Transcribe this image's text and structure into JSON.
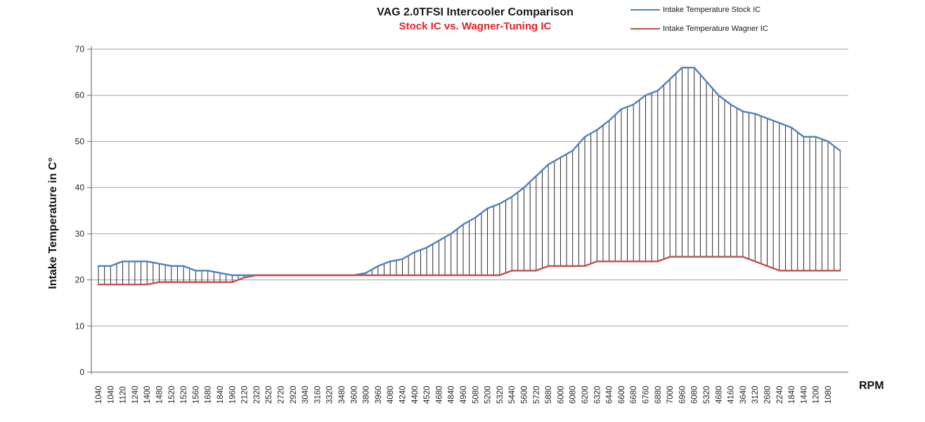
{
  "title": "VAG 2.0TFSI Intercooler Comparison",
  "subtitle": "Stock IC vs. Wagner-Tuning IC",
  "colors": {
    "title_text": "#1a1a1a",
    "subtitle_text": "#e32227",
    "stock_line": "#4F81BD",
    "wagner_line": "#C0504D",
    "gridline": "#a3a3a3",
    "axis_line": "#808080",
    "high_low_line": "#141414",
    "tick_text": "#262626"
  },
  "legend": [
    {
      "label": "Intake Temperature Stock IC",
      "color": "#4F81BD"
    },
    {
      "label": "Intake Temperature Wagner IC",
      "color": "#C0504D"
    }
  ],
  "y_axis": {
    "title": "Intake Temperature in C°",
    "ticks": [
      "0",
      "10",
      "20",
      "30",
      "40",
      "50",
      "60",
      "70"
    ]
  },
  "x_axis": {
    "title": "RPM"
  },
  "chart_data": {
    "type": "line",
    "title": "VAG 2.0TFSI Intercooler Comparison",
    "subtitle": "Stock IC vs. Wagner-Tuning IC",
    "xlabel": "RPM",
    "ylabel": "Intake Temperature in C°",
    "ylim": [
      0,
      70
    ],
    "y_tick_step": 10,
    "grid": "horizontal",
    "legend_position": "top-right",
    "high_low_lines": true,
    "categories": [
      "1040",
      "1040",
      "1120",
      "1240",
      "1400",
      "1480",
      "1520",
      "1520",
      "1560",
      "1680",
      "1840",
      "1960",
      "2120",
      "2320",
      "2520",
      "2720",
      "2920",
      "3040",
      "3160",
      "3320",
      "3480",
      "3600",
      "3800",
      "3960",
      "4080",
      "4240",
      "4400",
      "4520",
      "4680",
      "4840",
      "4960",
      "5080",
      "5200",
      "5320",
      "5440",
      "5600",
      "5720",
      "5880",
      "6000",
      "6080",
      "6200",
      "6320",
      "6440",
      "6600",
      "6680",
      "6760",
      "6880",
      "7000",
      "6960",
      "6080",
      "5320",
      "4680",
      "4160",
      "3640",
      "3120",
      "2680",
      "2240",
      "1840",
      "1440",
      "1200",
      "1080"
    ],
    "series": [
      {
        "name": "Intake Temperature Stock IC",
        "color": "#4F81BD",
        "values": [
          23,
          23,
          24,
          24,
          24,
          23.5,
          23,
          23,
          22,
          22,
          21.5,
          21,
          21,
          21,
          21,
          21,
          21,
          21,
          21,
          21,
          21,
          21,
          21.5,
          23,
          24,
          24.5,
          26,
          27,
          28.5,
          30,
          32,
          33.5,
          35.5,
          36.5,
          38,
          40,
          42.5,
          45,
          46.5,
          48,
          51,
          52.5,
          54.5,
          57,
          58,
          60,
          61,
          63.5,
          66,
          66,
          63,
          60,
          58,
          56.5,
          56,
          55,
          54,
          53,
          51,
          51,
          50
        ],
        "final_unlabeled_value": 48
      },
      {
        "name": "Intake Temperature Wagner IC",
        "color": "#C0504D",
        "values": [
          19,
          19,
          19,
          19,
          19,
          19.5,
          19.5,
          19.5,
          19.5,
          19.5,
          19.5,
          19.5,
          20.5,
          21,
          21,
          21,
          21,
          21,
          21,
          21,
          21,
          21,
          21,
          21,
          21,
          21,
          21,
          21,
          21,
          21,
          21,
          21,
          21,
          21,
          22,
          22,
          22,
          23,
          23,
          23,
          23,
          24,
          24,
          24,
          24,
          24,
          24,
          25,
          25,
          25,
          25,
          25,
          25,
          25,
          24,
          23,
          22,
          22,
          22,
          22,
          22
        ],
        "final_unlabeled_value": 22
      }
    ],
    "note": "Vertical black high-low lines connect the two series at every data point; series extend one unlabeled point past the last category."
  }
}
